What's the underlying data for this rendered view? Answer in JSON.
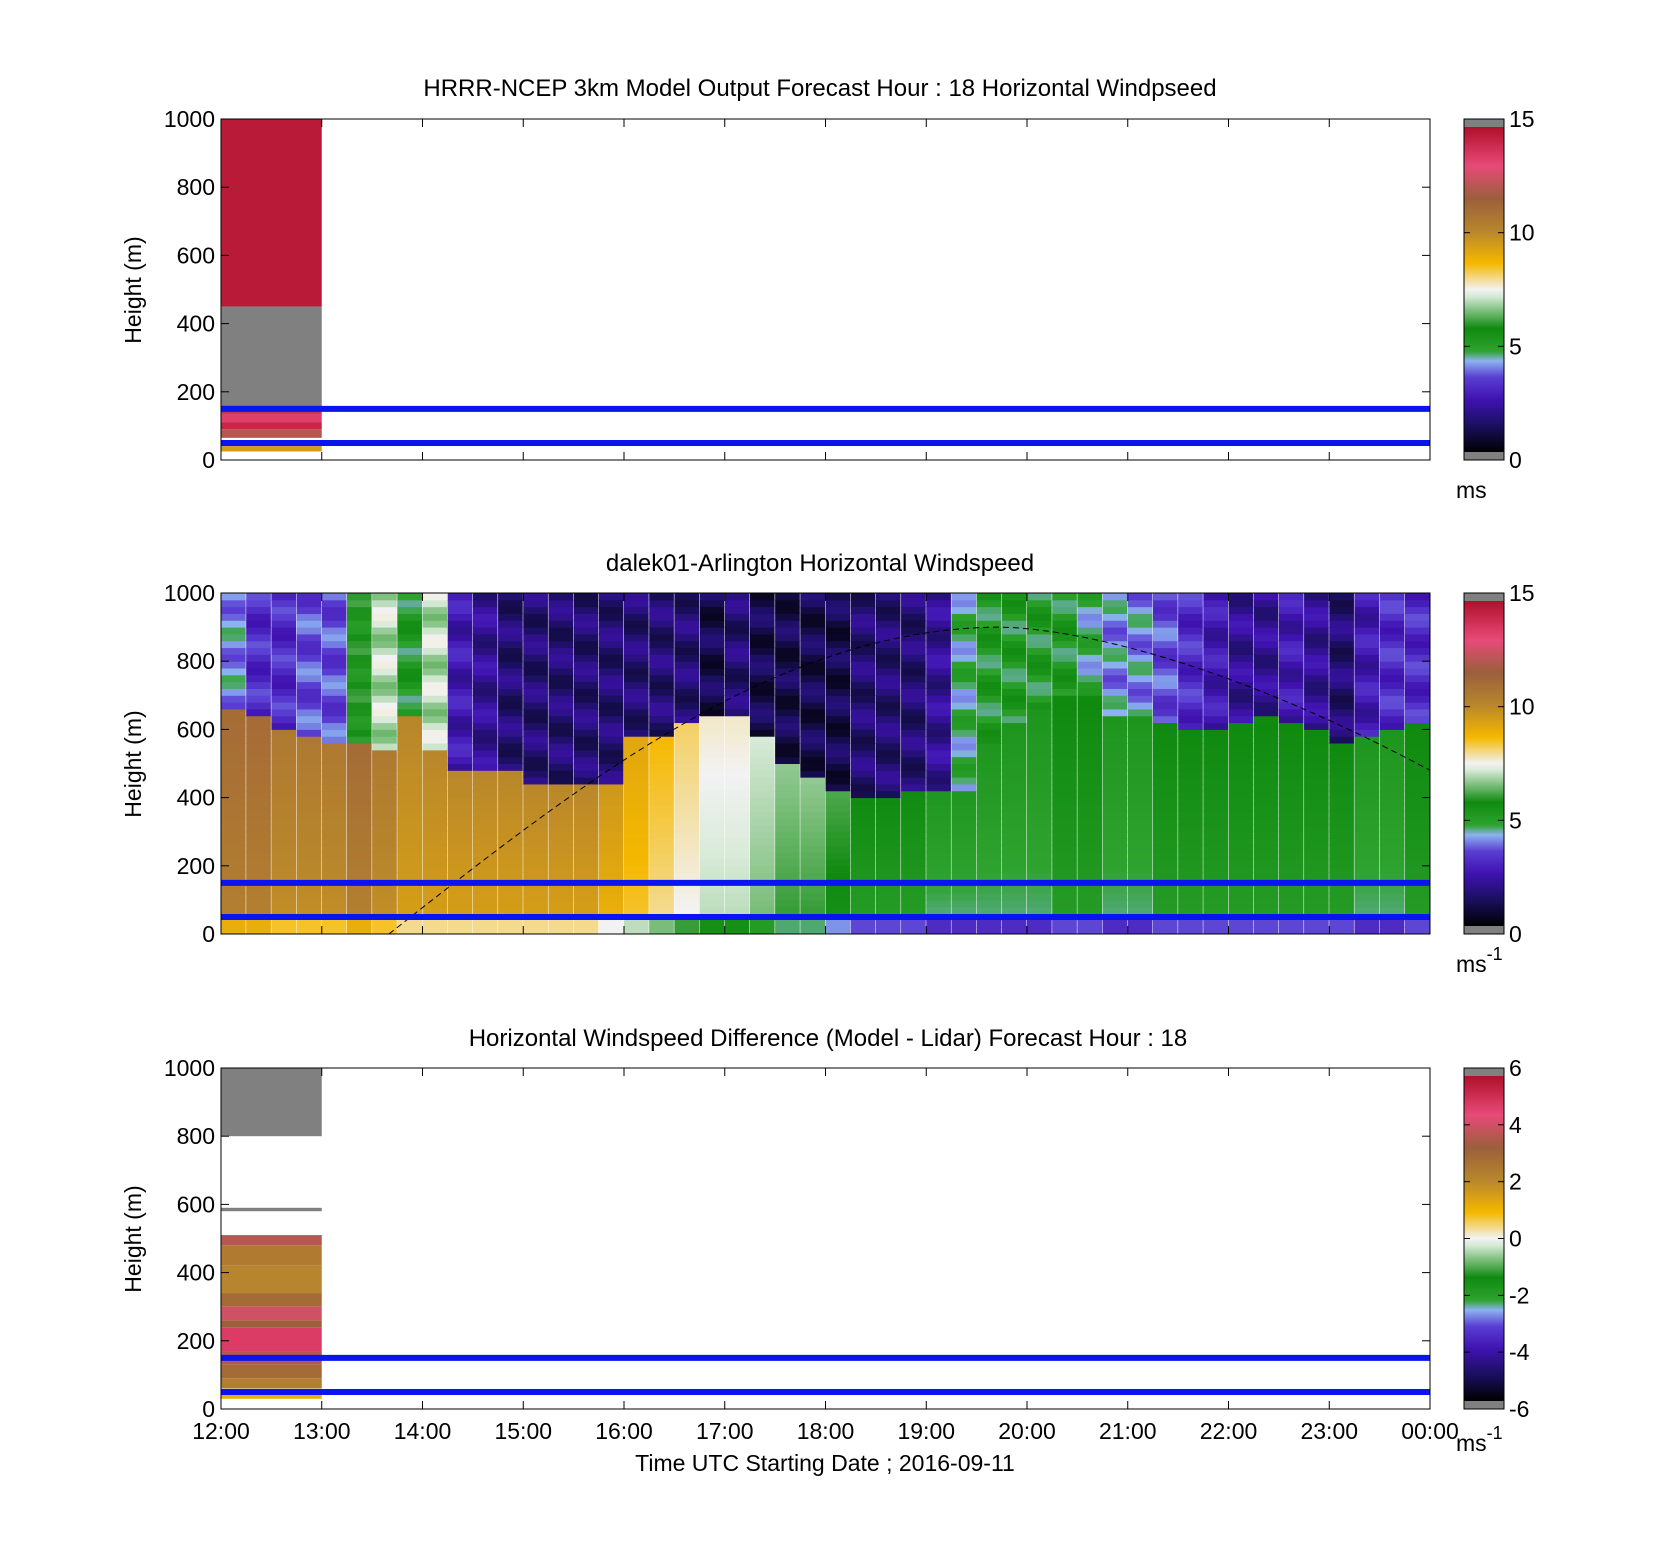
{
  "chart_data": [
    {
      "type": "heatmap",
      "title": "HRRR-NCEP 3km Model Output   Forecast Hour : 18 Horizontal Windpseed",
      "ylabel": "Height (m)",
      "xlim": [
        "12:00",
        "00:00"
      ],
      "ylim": [
        0,
        1000
      ],
      "yticks": [
        "0",
        "200",
        "400",
        "600",
        "800",
        "1000"
      ],
      "colorbar": {
        "min": 0,
        "max": 15,
        "ticks": [
          "0",
          "5",
          "10",
          "15"
        ],
        "unit": "ms",
        "unit_sup": ""
      },
      "reference_heights_m": [
        50,
        150
      ],
      "model_column": {
        "time_start": "12:00",
        "time_end": "13:00",
        "segments": [
          {
            "from": 450,
            "to": 1000,
            "value": 14.7
          },
          {
            "from": 160,
            "to": 450,
            "value": 16
          },
          {
            "from": 135,
            "to": 160,
            "value": 14
          },
          {
            "from": 110,
            "to": 135,
            "value": 13.5
          },
          {
            "from": 90,
            "to": 110,
            "value": 14.3
          },
          {
            "from": 65,
            "to": 90,
            "value": 12.2
          },
          {
            "from": 40,
            "to": 50,
            "value": 10.5
          },
          {
            "from": 25,
            "to": 40,
            "value": 9.5
          }
        ]
      }
    },
    {
      "type": "heatmap",
      "title": "dalek01-Arlington  Horizontal Windspeed",
      "ylabel": "Height (m)",
      "xlim": [
        "12:00",
        "00:00"
      ],
      "ylim": [
        0,
        1000
      ],
      "yticks": [
        "0",
        "200",
        "400",
        "600",
        "800",
        "1000"
      ],
      "colorbar": {
        "min": 0,
        "max": 15,
        "ticks": [
          "0",
          "5",
          "10",
          "15"
        ],
        "unit": "ms",
        "unit_sup": "-1"
      },
      "reference_heights_m": [
        50,
        150
      ],
      "time_bins_hours_after_start": [
        0,
        0.25,
        0.5,
        0.75,
        1,
        1.25,
        1.5,
        1.75,
        2,
        2.25,
        2.5,
        2.75,
        3,
        3.25,
        3.5,
        3.75,
        4,
        4.25,
        4.5,
        4.75,
        5,
        5.25,
        5.5,
        5.75,
        6,
        6.25,
        6.5,
        6.75,
        7,
        7.25,
        7.5,
        7.75,
        8,
        8.25,
        8.5,
        8.75,
        9,
        9.25,
        9.5,
        9.75,
        10,
        10.25,
        10.5,
        10.75,
        11,
        11.25,
        11.5,
        11.75
      ],
      "low_layer_top_m": [
        660,
        640,
        600,
        570,
        560,
        560,
        540,
        640,
        540,
        480,
        470,
        470,
        440,
        430,
        440,
        440,
        580,
        580,
        620,
        640,
        640,
        580,
        500,
        450,
        420,
        400,
        400,
        420,
        420,
        420,
        560,
        620,
        650,
        700,
        700,
        640,
        640,
        620,
        600,
        600,
        620,
        630,
        620,
        600,
        560,
        580,
        600,
        620
      ],
      "low_layer_speed_ms": [
        10.5,
        10.5,
        10,
        10,
        10,
        10.5,
        10,
        9.5,
        9.5,
        9.5,
        9.5,
        9.5,
        9.5,
        9.5,
        9.5,
        9,
        8.5,
        8,
        7.5,
        7,
        7,
        6.5,
        6,
        6,
        5.5,
        5,
        5,
        5,
        4.5,
        4.5,
        4.5,
        4.5,
        4.5,
        5,
        5,
        4.5,
        4.5,
        5,
        5,
        5,
        5,
        5,
        5,
        5,
        5,
        4.5,
        4.5,
        5
      ],
      "upper_layer_speed_ms": [
        4,
        3,
        3,
        3.5,
        3.5,
        5.5,
        7,
        5,
        7,
        2.5,
        2,
        1.5,
        1.5,
        1.5,
        1.5,
        1.5,
        1.5,
        1.5,
        1.5,
        1,
        1.5,
        1,
        1,
        1,
        1,
        1.5,
        1.5,
        1.5,
        2,
        4.5,
        5,
        5,
        5,
        5,
        4.5,
        4,
        4,
        3.5,
        3,
        2.5,
        2,
        2,
        2.5,
        2,
        1.5,
        2.5,
        3,
        3
      ],
      "dashed_curve": {
        "start": "13:40",
        "peak_height_m": 900,
        "peak": "19:45",
        "end_height_m": 480,
        "end": "24:00"
      }
    },
    {
      "type": "heatmap",
      "title": "Horizontal Windspeed Difference (Model - Lidar) Forecast Hour : 18",
      "ylabel": "Height (m)",
      "xlabel": "Time UTC  Starting Date ; 2016-09-11",
      "xticks": [
        "12:00",
        "13:00",
        "14:00",
        "15:00",
        "16:00",
        "17:00",
        "18:00",
        "19:00",
        "20:00",
        "21:00",
        "22:00",
        "23:00",
        "00:00"
      ],
      "ylim": [
        0,
        1000
      ],
      "yticks": [
        "0",
        "200",
        "400",
        "600",
        "800",
        "1000"
      ],
      "colorbar": {
        "min": -6,
        "max": 6,
        "ticks": [
          "-6",
          "-4",
          "-2",
          "0",
          "2",
          "4",
          "6"
        ],
        "unit": "ms",
        "unit_sup": "-1"
      },
      "reference_heights_m": [
        50,
        150
      ],
      "model_column": {
        "time_start": "12:00",
        "time_end": "13:00",
        "segments": [
          {
            "from": 800,
            "to": 1000,
            "value": 7
          },
          {
            "from": 580,
            "to": 590,
            "value": 7
          },
          {
            "from": 480,
            "to": 510,
            "value": 3.8
          },
          {
            "from": 420,
            "to": 480,
            "value": 2.5
          },
          {
            "from": 340,
            "to": 420,
            "value": 2.2
          },
          {
            "from": 300,
            "to": 340,
            "value": 3
          },
          {
            "from": 260,
            "to": 300,
            "value": 4.2
          },
          {
            "from": 240,
            "to": 260,
            "value": 3.3
          },
          {
            "from": 170,
            "to": 240,
            "value": 4.9
          },
          {
            "from": 130,
            "to": 170,
            "value": 3.8
          },
          {
            "from": 90,
            "to": 130,
            "value": 3
          },
          {
            "from": 60,
            "to": 90,
            "value": 2.4
          },
          {
            "from": 30,
            "to": 50,
            "value": 1.2
          }
        ]
      }
    }
  ],
  "colors": {
    "reference_line": "#0a14f0",
    "out_of_range": "#808080",
    "colormap": [
      "#000000",
      "#1a0f5e",
      "#3f12b0",
      "#5a3ed2",
      "#8cb2f0",
      "#2fa32f",
      "#0f8a0f",
      "#d8ead8",
      "#f2f2f2",
      "#f5b800",
      "#b8862c",
      "#9b5f3c",
      "#e74a78",
      "#b0102a"
    ]
  }
}
